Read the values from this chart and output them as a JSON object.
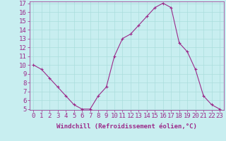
{
  "x": [
    0,
    1,
    2,
    3,
    4,
    5,
    6,
    7,
    8,
    9,
    10,
    11,
    12,
    13,
    14,
    15,
    16,
    17,
    18,
    19,
    20,
    21,
    22,
    23
  ],
  "y": [
    10,
    9.5,
    8.5,
    7.5,
    6.5,
    5.5,
    5.0,
    5.0,
    6.5,
    7.5,
    11.0,
    13.0,
    13.5,
    14.5,
    15.5,
    16.5,
    17.0,
    16.5,
    12.5,
    11.5,
    9.5,
    6.5,
    5.5,
    5.0
  ],
  "line_color": "#9b2a8a",
  "marker": "+",
  "marker_size": 3,
  "background_color": "#c8eef0",
  "grid_color": "#aadddd",
  "xlabel": "Windchill (Refroidissement éolien,°C)",
  "ylim": [
    5,
    17
  ],
  "xlim": [
    -0.5,
    23.5
  ],
  "yticks": [
    5,
    6,
    7,
    8,
    9,
    10,
    11,
    12,
    13,
    14,
    15,
    16,
    17
  ],
  "xticks": [
    0,
    1,
    2,
    3,
    4,
    5,
    6,
    7,
    8,
    9,
    10,
    11,
    12,
    13,
    14,
    15,
    16,
    17,
    18,
    19,
    20,
    21,
    22,
    23
  ],
  "tick_color": "#9b2a8a",
  "label_color": "#9b2a8a",
  "axis_color": "#9b2a8a",
  "font_size": 6.5
}
